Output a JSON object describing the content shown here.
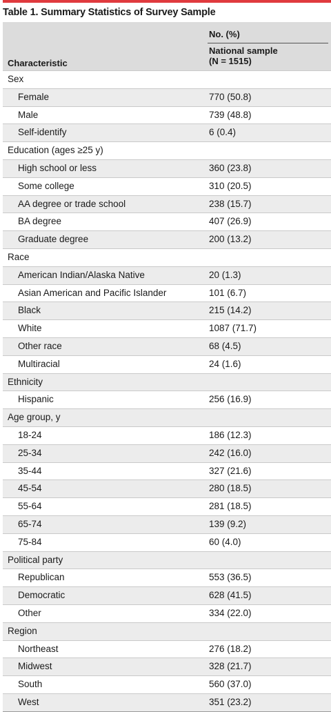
{
  "title": "Table 1. Summary Statistics of Survey Sample",
  "header": {
    "characteristic": "Characteristic",
    "no_pct": "No. (%)",
    "col_line1": "National sample",
    "col_line2": "(N = 1515)"
  },
  "rows": [
    {
      "label": "Sex",
      "value": "",
      "type": "cat"
    },
    {
      "label": "Female",
      "value": "770 (50.8)",
      "type": "sub"
    },
    {
      "label": "Male",
      "value": "739 (48.8)",
      "type": "sub"
    },
    {
      "label": "Self-identify",
      "value": "6 (0.4)",
      "type": "sub"
    },
    {
      "label": "Education (ages ≥25 y)",
      "value": "",
      "type": "cat"
    },
    {
      "label": "High school or less",
      "value": "360 (23.8)",
      "type": "sub"
    },
    {
      "label": "Some college",
      "value": "310 (20.5)",
      "type": "sub"
    },
    {
      "label": "AA degree or trade school",
      "value": "238 (15.7)",
      "type": "sub"
    },
    {
      "label": "BA degree",
      "value": "407 (26.9)",
      "type": "sub"
    },
    {
      "label": "Graduate degree",
      "value": "200 (13.2)",
      "type": "sub"
    },
    {
      "label": "Race",
      "value": "",
      "type": "cat"
    },
    {
      "label": "American Indian/Alaska Native",
      "value": "20 (1.3)",
      "type": "sub"
    },
    {
      "label": "Asian American and Pacific Islander",
      "value": "101 (6.7)",
      "type": "sub"
    },
    {
      "label": "Black",
      "value": "215 (14.2)",
      "type": "sub"
    },
    {
      "label": "White",
      "value": "1087 (71.7)",
      "type": "sub"
    },
    {
      "label": "Other race",
      "value": "68 (4.5)",
      "type": "sub"
    },
    {
      "label": "Multiracial",
      "value": "24 (1.6)",
      "type": "sub"
    },
    {
      "label": "Ethnicity",
      "value": "",
      "type": "cat"
    },
    {
      "label": "Hispanic",
      "value": "256 (16.9)",
      "type": "sub"
    },
    {
      "label": "Age group, y",
      "value": "",
      "type": "cat"
    },
    {
      "label": "18-24",
      "value": "186 (12.3)",
      "type": "sub"
    },
    {
      "label": "25-34",
      "value": "242 (16.0)",
      "type": "sub"
    },
    {
      "label": "35-44",
      "value": "327 (21.6)",
      "type": "sub"
    },
    {
      "label": "45-54",
      "value": "280 (18.5)",
      "type": "sub"
    },
    {
      "label": "55-64",
      "value": "281 (18.5)",
      "type": "sub"
    },
    {
      "label": "65-74",
      "value": "139 (9.2)",
      "type": "sub"
    },
    {
      "label": "75-84",
      "value": "60 (4.0)",
      "type": "sub"
    },
    {
      "label": "Political party",
      "value": "",
      "type": "cat"
    },
    {
      "label": "Republican",
      "value": "553 (36.5)",
      "type": "sub"
    },
    {
      "label": "Democratic",
      "value": "628 (41.5)",
      "type": "sub"
    },
    {
      "label": "Other",
      "value": "334 (22.0)",
      "type": "sub"
    },
    {
      "label": "Region",
      "value": "",
      "type": "cat"
    },
    {
      "label": "Northeast",
      "value": "276 (18.2)",
      "type": "sub"
    },
    {
      "label": "Midwest",
      "value": "328 (21.7)",
      "type": "sub"
    },
    {
      "label": "South",
      "value": "560 (37.0)",
      "type": "sub"
    },
    {
      "label": "West",
      "value": "351 (23.2)",
      "type": "sub"
    }
  ]
}
